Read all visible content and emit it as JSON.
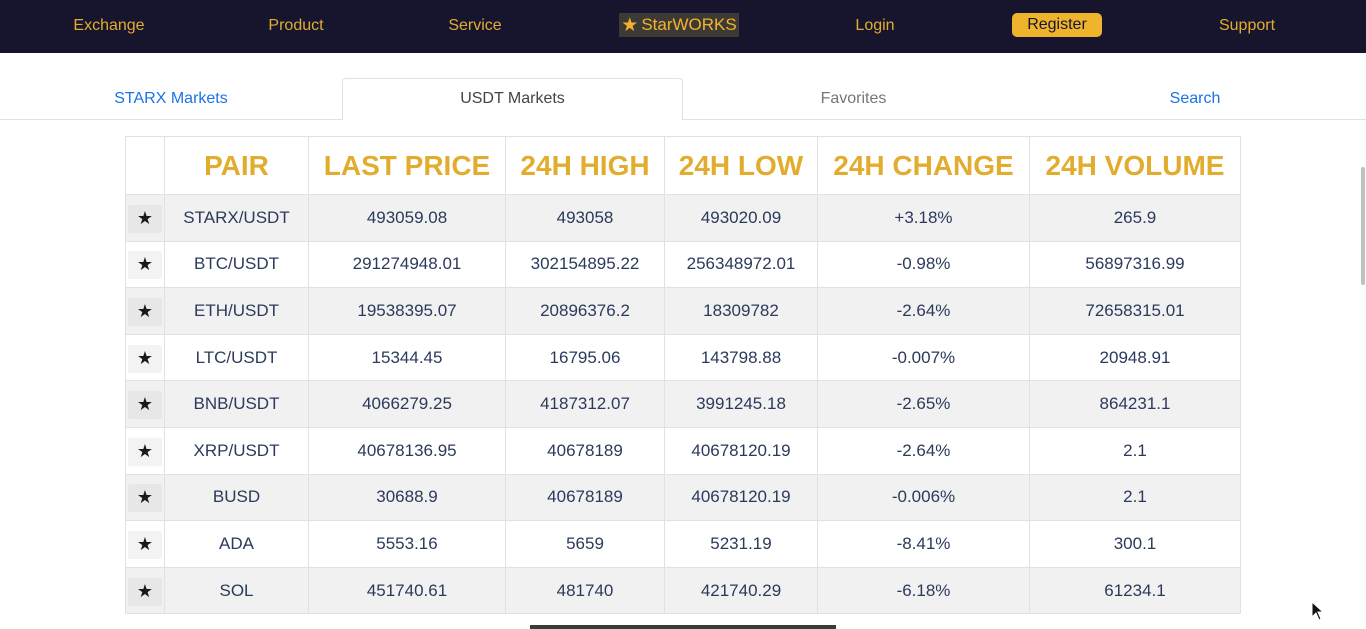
{
  "nav": {
    "exchange": "Exchange",
    "product": "Product",
    "service": "Service",
    "logo_text": "StarWORKS",
    "login": "Login",
    "register": "Register",
    "support": "Support"
  },
  "tabs": {
    "starx": "STARX Markets",
    "usdt": "USDT Markets",
    "favorites": "Favorites",
    "search": "Search",
    "active": "USDT Markets"
  },
  "table": {
    "headers": [
      "PAIR",
      "LAST PRICE",
      "24H HIGH",
      "24H LOW",
      "24H CHANGE",
      "24H VOLUME"
    ],
    "rows": [
      {
        "pair": "STARX/USDT",
        "last": "493059.08",
        "high": "493058",
        "low": "493020.09",
        "change": "+3.18%",
        "volume": "265.9"
      },
      {
        "pair": "BTC/USDT",
        "last": "291274948.01",
        "high": "302154895.22",
        "low": "256348972.01",
        "change": "-0.98%",
        "volume": "56897316.99"
      },
      {
        "pair": "ETH/USDT",
        "last": "19538395.07",
        "high": "20896376.2",
        "low": "18309782",
        "change": "-2.64%",
        "volume": "72658315.01"
      },
      {
        "pair": "LTC/USDT",
        "last": "15344.45",
        "high": "16795.06",
        "low": "143798.88",
        "change": "-0.007%",
        "volume": "20948.91"
      },
      {
        "pair": "BNB/USDT",
        "last": "4066279.25",
        "high": "4187312.07",
        "low": "3991245.18",
        "change": "-2.65%",
        "volume": "864231.1"
      },
      {
        "pair": "XRP/USDT",
        "last": "40678136.95",
        "high": "40678189",
        "low": "40678120.19",
        "change": "-2.64%",
        "volume": "2.1"
      },
      {
        "pair": "BUSD",
        "last": "30688.9",
        "high": "40678189",
        "low": "40678120.19",
        "change": "-0.006%",
        "volume": "2.1"
      },
      {
        "pair": "ADA",
        "last": "5553.16",
        "high": "5659",
        "low": "5231.19",
        "change": "-8.41%",
        "volume": "300.1"
      },
      {
        "pair": "SOL",
        "last": "451740.61",
        "high": "481740",
        "low": "421740.29",
        "change": "-6.18%",
        "volume": "61234.1"
      }
    ]
  },
  "icons": {
    "logo": "star-icon",
    "favorite": "star-icon",
    "cursor": "mouse-pointer-icon"
  },
  "colors": {
    "nav_bg": "#17152e",
    "accent_gold": "#e2ad2e",
    "link_blue": "#1a73e8",
    "text_navy": "#2b3a5b"
  }
}
